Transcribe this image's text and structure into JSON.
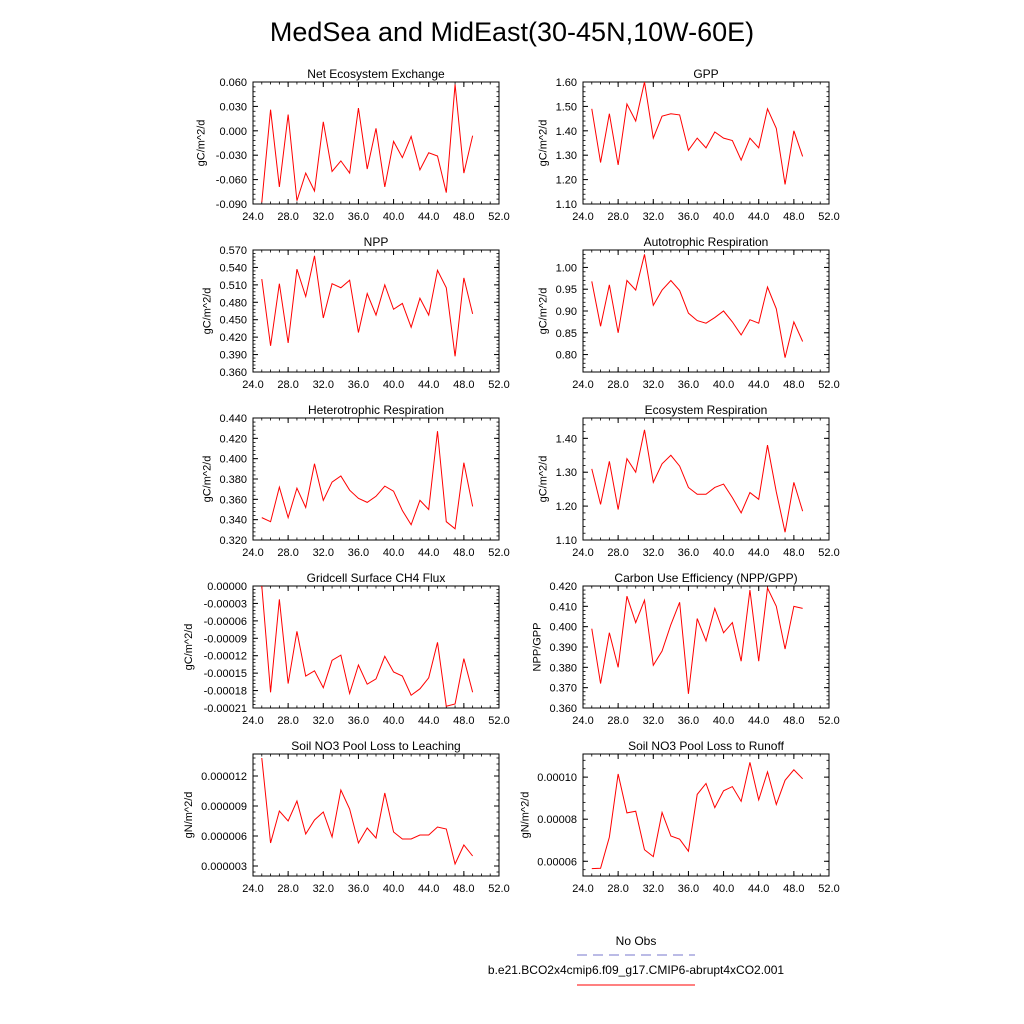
{
  "title": "MedSea and MidEast(30-45N,10W-60E)",
  "colors": {
    "model": "#ff0000",
    "obs": "#7777cc",
    "axis": "#000000"
  },
  "legend": {
    "obs_label": "No Obs",
    "model_label": "b.e21.BCO2x4cmip6.f09_g17.CMIP6-abrupt4xCO2.001"
  },
  "chart_data": [
    {
      "type": "line",
      "title": "Net Ecosystem Exchange",
      "ylabel": "gC/m^2/d",
      "xlim": [
        24,
        52
      ],
      "xticks": [
        "24.0",
        "28.0",
        "32.0",
        "36.0",
        "40.0",
        "44.0",
        "48.0",
        "52.0"
      ],
      "ylim": [
        -0.09,
        0.06
      ],
      "yticks": [
        "-0.090",
        "-0.060",
        "-0.030",
        "0.000",
        "0.030",
        "0.060"
      ],
      "x": [
        25,
        26,
        27,
        28,
        29,
        30,
        31,
        32,
        33,
        34,
        35,
        36,
        37,
        38,
        39,
        40,
        41,
        42,
        43,
        44,
        45,
        46,
        47,
        48,
        49
      ],
      "values": [
        -0.088,
        0.026,
        -0.069,
        0.02,
        -0.086,
        -0.052,
        -0.074,
        0.011,
        -0.05,
        -0.037,
        -0.052,
        0.028,
        -0.047,
        0.003,
        -0.069,
        -0.013,
        -0.033,
        -0.007,
        -0.048,
        -0.027,
        -0.031,
        -0.076,
        0.057,
        -0.052,
        -0.006
      ]
    },
    {
      "type": "line",
      "title": "GPP",
      "ylabel": "gC/m^2/d",
      "xlim": [
        24,
        52
      ],
      "xticks": [
        "24.0",
        "28.0",
        "32.0",
        "36.0",
        "40.0",
        "44.0",
        "48.0",
        "52.0"
      ],
      "ylim": [
        1.1,
        1.6
      ],
      "yticks": [
        "1.10",
        "1.20",
        "1.30",
        "1.40",
        "1.50",
        "1.60"
      ],
      "x": [
        25,
        26,
        27,
        28,
        29,
        30,
        31,
        32,
        33,
        34,
        35,
        36,
        37,
        38,
        39,
        40,
        41,
        42,
        43,
        44,
        45,
        46,
        47,
        48,
        49
      ],
      "values": [
        1.49,
        1.27,
        1.47,
        1.26,
        1.51,
        1.44,
        1.6,
        1.37,
        1.46,
        1.47,
        1.465,
        1.32,
        1.37,
        1.33,
        1.395,
        1.37,
        1.36,
        1.28,
        1.37,
        1.33,
        1.49,
        1.41,
        1.18,
        1.4,
        1.295
      ]
    },
    {
      "type": "line",
      "title": "NPP",
      "ylabel": "gC/m^2/d",
      "xlim": [
        24,
        52
      ],
      "xticks": [
        "24.0",
        "28.0",
        "32.0",
        "36.0",
        "40.0",
        "44.0",
        "48.0",
        "52.0"
      ],
      "ylim": [
        0.36,
        0.57
      ],
      "yticks": [
        "0.360",
        "0.390",
        "0.420",
        "0.450",
        "0.480",
        "0.510",
        "0.540",
        "0.570"
      ],
      "x": [
        25,
        26,
        27,
        28,
        29,
        30,
        31,
        32,
        33,
        34,
        35,
        36,
        37,
        38,
        39,
        40,
        41,
        42,
        43,
        44,
        45,
        46,
        47,
        48,
        49
      ],
      "values": [
        0.52,
        0.405,
        0.512,
        0.41,
        0.537,
        0.49,
        0.56,
        0.453,
        0.512,
        0.505,
        0.518,
        0.428,
        0.495,
        0.458,
        0.51,
        0.468,
        0.478,
        0.437,
        0.487,
        0.458,
        0.535,
        0.505,
        0.387,
        0.522,
        0.46
      ]
    },
    {
      "type": "line",
      "title": "Autotrophic Respiration",
      "ylabel": "gC/m^2/d",
      "xlim": [
        24,
        52
      ],
      "xticks": [
        "24.0",
        "28.0",
        "32.0",
        "36.0",
        "40.0",
        "44.0",
        "48.0",
        "52.0"
      ],
      "ylim": [
        0.76,
        1.04
      ],
      "yticks": [
        "0.80",
        "0.85",
        "0.90",
        "0.95",
        "1.00"
      ],
      "x": [
        25,
        26,
        27,
        28,
        29,
        30,
        31,
        32,
        33,
        34,
        35,
        36,
        37,
        38,
        39,
        40,
        41,
        42,
        43,
        44,
        45,
        46,
        47,
        48,
        49
      ],
      "values": [
        0.968,
        0.865,
        0.96,
        0.85,
        0.97,
        0.948,
        1.03,
        0.913,
        0.948,
        0.97,
        0.947,
        0.895,
        0.878,
        0.872,
        0.885,
        0.9,
        0.875,
        0.845,
        0.88,
        0.872,
        0.955,
        0.905,
        0.793,
        0.875,
        0.83
      ]
    },
    {
      "type": "line",
      "title": "Heterotrophic Respiration",
      "ylabel": "gC/m^2/d",
      "xlim": [
        24,
        52
      ],
      "xticks": [
        "24.0",
        "28.0",
        "32.0",
        "36.0",
        "40.0",
        "44.0",
        "48.0",
        "52.0"
      ],
      "ylim": [
        0.32,
        0.44
      ],
      "yticks": [
        "0.320",
        "0.340",
        "0.360",
        "0.380",
        "0.400",
        "0.420",
        "0.440"
      ],
      "x": [
        25,
        26,
        27,
        28,
        29,
        30,
        31,
        32,
        33,
        34,
        35,
        36,
        37,
        38,
        39,
        40,
        41,
        42,
        43,
        44,
        45,
        46,
        47,
        48,
        49
      ],
      "values": [
        0.342,
        0.338,
        0.372,
        0.342,
        0.371,
        0.352,
        0.395,
        0.359,
        0.377,
        0.383,
        0.369,
        0.361,
        0.357,
        0.363,
        0.373,
        0.368,
        0.349,
        0.335,
        0.359,
        0.35,
        0.427,
        0.338,
        0.331,
        0.396,
        0.353
      ]
    },
    {
      "type": "line",
      "title": "Ecosystem Respiration",
      "ylabel": "gC/m^2/d",
      "xlim": [
        24,
        52
      ],
      "xticks": [
        "24.0",
        "28.0",
        "32.0",
        "36.0",
        "40.0",
        "44.0",
        "48.0",
        "52.0"
      ],
      "ylim": [
        1.1,
        1.46
      ],
      "yticks": [
        "1.10",
        "1.20",
        "1.30",
        "1.40"
      ],
      "x": [
        25,
        26,
        27,
        28,
        29,
        30,
        31,
        32,
        33,
        34,
        35,
        36,
        37,
        38,
        39,
        40,
        41,
        42,
        43,
        44,
        45,
        46,
        47,
        48,
        49
      ],
      "values": [
        1.31,
        1.205,
        1.332,
        1.19,
        1.34,
        1.3,
        1.425,
        1.27,
        1.325,
        1.35,
        1.318,
        1.255,
        1.235,
        1.235,
        1.255,
        1.265,
        1.225,
        1.18,
        1.24,
        1.22,
        1.38,
        1.242,
        1.123,
        1.27,
        1.185
      ]
    },
    {
      "type": "line",
      "title": "Gridcell Surface CH4 Flux",
      "ylabel": "gC/m^2/d",
      "xlim": [
        24,
        52
      ],
      "xticks": [
        "24.0",
        "28.0",
        "32.0",
        "36.0",
        "40.0",
        "44.0",
        "48.0",
        "52.0"
      ],
      "ylim": [
        -0.00021,
        0.0
      ],
      "yticks": [
        "-0.00021",
        "-0.00018",
        "-0.00015",
        "-0.00012",
        "-0.00009",
        "-0.00006",
        "-0.00003",
        "0.00000"
      ],
      "x": [
        25,
        26,
        27,
        28,
        29,
        30,
        31,
        32,
        33,
        34,
        35,
        36,
        37,
        38,
        39,
        40,
        41,
        42,
        43,
        44,
        45,
        46,
        47,
        48,
        49
      ],
      "values": [
        0.0,
        -0.000183,
        -2.3e-05,
        -0.000168,
        -7.8e-05,
        -0.000155,
        -0.000146,
        -0.000175,
        -0.000128,
        -0.000119,
        -0.000185,
        -0.000136,
        -0.000169,
        -0.00016,
        -0.000121,
        -0.000148,
        -0.000155,
        -0.000188,
        -0.000177,
        -0.000158,
        -9.7e-05,
        -0.000207,
        -0.000203,
        -0.000125,
        -0.000183
      ]
    },
    {
      "type": "line",
      "title": "Carbon Use Efficiency (NPP/GPP)",
      "ylabel": "NPP/GPP",
      "xlim": [
        24,
        52
      ],
      "xticks": [
        "24.0",
        "28.0",
        "32.0",
        "36.0",
        "40.0",
        "44.0",
        "48.0",
        "52.0"
      ],
      "ylim": [
        0.36,
        0.42
      ],
      "yticks": [
        "0.360",
        "0.370",
        "0.380",
        "0.390",
        "0.400",
        "0.410",
        "0.420"
      ],
      "x": [
        25,
        26,
        27,
        28,
        29,
        30,
        31,
        32,
        33,
        34,
        35,
        36,
        37,
        38,
        39,
        40,
        41,
        42,
        43,
        44,
        45,
        46,
        47,
        48,
        49
      ],
      "values": [
        0.399,
        0.372,
        0.397,
        0.38,
        0.415,
        0.402,
        0.413,
        0.381,
        0.388,
        0.401,
        0.412,
        0.367,
        0.404,
        0.393,
        0.409,
        0.397,
        0.402,
        0.383,
        0.418,
        0.383,
        0.419,
        0.41,
        0.389,
        0.41,
        0.409
      ]
    },
    {
      "type": "line",
      "title": "Soil NO3 Pool Loss to Leaching",
      "ylabel": "gN/m^2/d",
      "xlim": [
        24,
        52
      ],
      "xticks": [
        "24.0",
        "28.0",
        "32.0",
        "36.0",
        "40.0",
        "44.0",
        "48.0",
        "52.0"
      ],
      "ylim": [
        2e-06,
        1.42e-05
      ],
      "yticks": [
        "0.000003",
        "0.000006",
        "0.000009",
        "0.000012"
      ],
      "x": [
        25,
        26,
        27,
        28,
        29,
        30,
        31,
        32,
        33,
        34,
        35,
        36,
        37,
        38,
        39,
        40,
        41,
        42,
        43,
        44,
        45,
        46,
        47,
        48,
        49
      ],
      "values": [
        1.38e-05,
        5.3e-06,
        8.5e-06,
        7.5e-06,
        9.5e-06,
        6.2e-06,
        7.6e-06,
        8.4e-06,
        5.9e-06,
        1.06e-05,
        8.7e-06,
        5.3e-06,
        6.8e-06,
        5.8e-06,
        1.03e-05,
        6.4e-06,
        5.7e-06,
        5.7e-06,
        6.1e-06,
        6.1e-06,
        6.9e-06,
        6.7e-06,
        3.2e-06,
        5.1e-06,
        4e-06
      ]
    },
    {
      "type": "line",
      "title": "Soil NO3 Pool Loss to Runoff",
      "ylabel": "gN/m^2/d",
      "xlim": [
        24,
        52
      ],
      "xticks": [
        "24.0",
        "28.0",
        "32.0",
        "36.0",
        "40.0",
        "44.0",
        "48.0",
        "52.0"
      ],
      "ylim": [
        5.3e-05,
        0.000111
      ],
      "yticks": [
        "0.00006",
        "0.00008",
        "0.00010"
      ],
      "x": [
        25,
        26,
        27,
        28,
        29,
        30,
        31,
        32,
        33,
        34,
        35,
        36,
        37,
        38,
        39,
        40,
        41,
        42,
        43,
        44,
        45,
        46,
        47,
        48,
        49
      ],
      "values": [
        5.65e-05,
        5.67e-05,
        7.15e-05,
        0.0001015,
        8.3e-05,
        8.38e-05,
        6.55e-05,
        6.22e-05,
        8.32e-05,
        7.2e-05,
        7.05e-05,
        6.48e-05,
        9.18e-05,
        9.7e-05,
        8.55e-05,
        9.35e-05,
        9.55e-05,
        8.85e-05,
        0.000107,
        8.92e-05,
        0.0001025,
        8.7e-05,
        9.85e-05,
        0.0001035,
        9.92e-05
      ]
    }
  ]
}
